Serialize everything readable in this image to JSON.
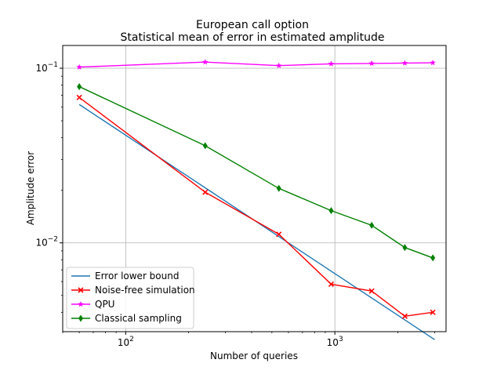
{
  "chart_data": {
    "type": "line",
    "title": "European call option",
    "subtitle": "Statistical mean of error in estimated amplitude",
    "xlabel": "Number of queries",
    "ylabel": "Amplitude error",
    "xscale": "log",
    "yscale": "log",
    "xlim": [
      50,
      3400
    ],
    "ylim": [
      0.0031,
      0.135
    ],
    "grid": true,
    "legend_position": "lower-left",
    "x_ticks": [
      {
        "value": 100,
        "base": "10",
        "exp": "2"
      },
      {
        "value": 1000,
        "base": "10",
        "exp": "3"
      }
    ],
    "y_ticks": [
      {
        "value": 0.01,
        "base": "10",
        "exp": "−2"
      },
      {
        "value": 0.1,
        "base": "10",
        "exp": "−1"
      }
    ],
    "series": [
      {
        "name": "Error lower bound",
        "color": "#1f77b4",
        "marker": "none",
        "x": [
          60,
          3000
        ],
        "y": [
          0.062,
          0.00279
        ]
      },
      {
        "name": "Noise-free simulation",
        "color": "#ff0000",
        "marker": "x",
        "x": [
          60,
          240,
          540,
          960,
          1500,
          2160,
          2940
        ],
        "y": [
          0.068,
          0.0195,
          0.0112,
          0.0058,
          0.0053,
          0.0038,
          0.004
        ]
      },
      {
        "name": "QPU",
        "color": "#ff00ff",
        "marker": "star",
        "x": [
          60,
          240,
          540,
          960,
          1500,
          2160,
          2940
        ],
        "y": [
          0.1015,
          0.1085,
          0.1035,
          0.106,
          0.1065,
          0.107,
          0.1075
        ]
      },
      {
        "name": "Classical sampling",
        "color": "#008000",
        "marker": "diamond",
        "x": [
          60,
          240,
          540,
          960,
          1500,
          2160,
          2940
        ],
        "y": [
          0.0785,
          0.036,
          0.0205,
          0.0153,
          0.0126,
          0.0094,
          0.0082
        ]
      }
    ]
  }
}
